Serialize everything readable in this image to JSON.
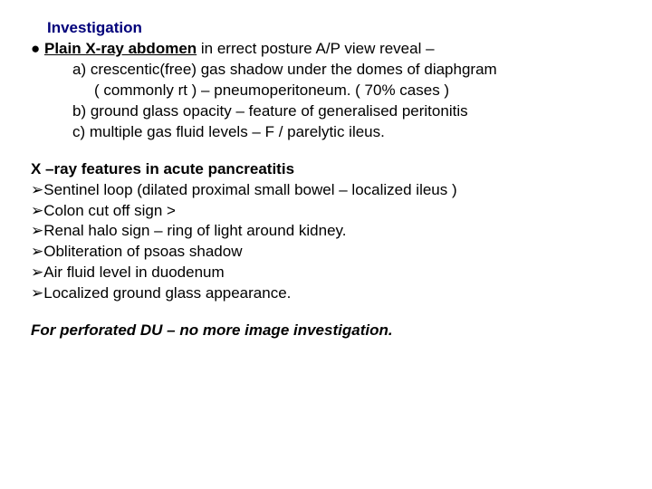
{
  "colors": {
    "heading": "#00007a",
    "text": "#000000",
    "background": "#ffffff"
  },
  "fontsize": 17,
  "lines": {
    "h1": "Investigation",
    "l1a": "● ",
    "l1b": "Plain X-ray abdomen",
    "l1c": " in errect posture A/P view reveal –",
    "l2": "a) crescentic(free) gas shadow under the domes of diaphgram",
    "l3": "( commonly rt ) – pneumoperitoneum. ( 70% cases )",
    "l4": "b) ground glass opacity – feature of generalised peritonitis",
    "l5": "c) multiple gas fluid levels – F / parelytic ileus.",
    "h2": "X –ray features in acute pancreatitis",
    "b1": "Sentinel loop (dilated proximal small bowel – localized ileus )",
    "b2": "Colon cut off sign >",
    "b3": "Renal halo sign – ring of light around kidney.",
    "b4": "Obliteration of psoas shadow",
    "b5": "Air fluid level in duodenum",
    "b6": "Localized ground glass appearance.",
    "footer": "For perforated DU – no more image investigation.",
    "bullet": "➢"
  }
}
